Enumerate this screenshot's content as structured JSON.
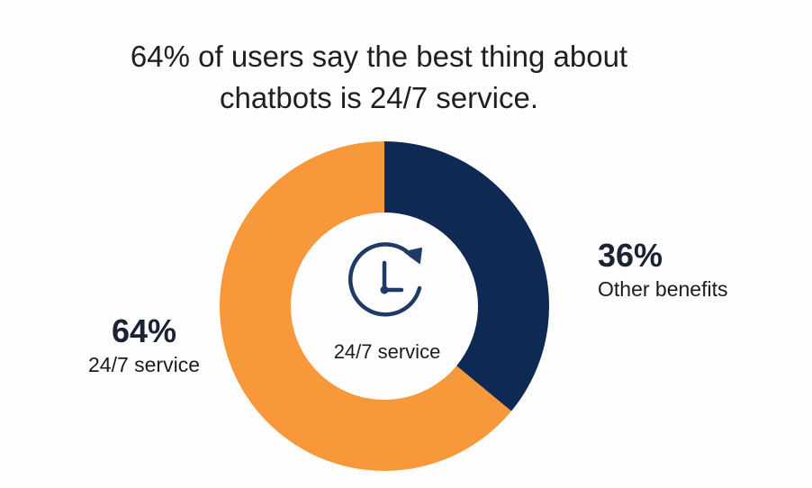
{
  "title_lines": [
    "64% of users say the best thing about",
    "chatbots is 24/7 service."
  ],
  "center": {
    "icon": "clock-refresh-icon",
    "label": "24/7 service"
  },
  "chart_data": {
    "type": "pie",
    "variant": "donut",
    "title": "64% of users say the best thing about chatbots is 24/7 service.",
    "slices": [
      {
        "label": "24/7 service",
        "value": 64,
        "display": "64%",
        "color": "#f7993b"
      },
      {
        "label": "Other benefits",
        "value": 36,
        "display": "36%",
        "color": "#0f2a52"
      }
    ],
    "legend": "none"
  },
  "callouts": {
    "left": {
      "pct": "64%",
      "label": "24/7 service"
    },
    "right": {
      "pct": "36%",
      "label": "Other benefits"
    }
  },
  "colors": {
    "orange": "#f7993b",
    "navy": "#0f2a52",
    "icon": "#1e3a66"
  }
}
